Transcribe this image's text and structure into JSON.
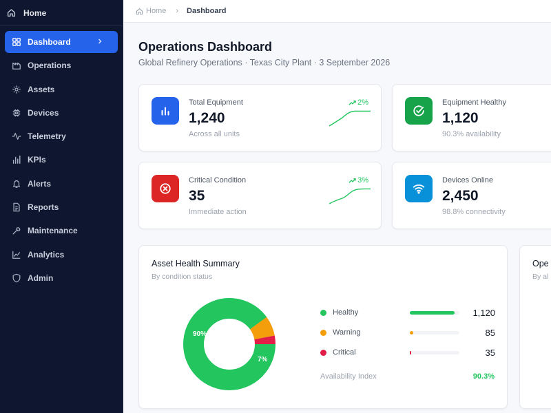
{
  "sidebar": {
    "home_label": "Home",
    "items": [
      {
        "label": "Dashboard",
        "icon": "grid-icon",
        "active": true
      },
      {
        "label": "Operations",
        "icon": "factory-icon"
      },
      {
        "label": "Assets",
        "icon": "gear-icon"
      },
      {
        "label": "Devices",
        "icon": "chip-icon"
      },
      {
        "label": "Telemetry",
        "icon": "pulse-icon"
      },
      {
        "label": "KPIs",
        "icon": "bar-chart-icon"
      },
      {
        "label": "Alerts",
        "icon": "bell-icon"
      },
      {
        "label": "Reports",
        "icon": "document-icon"
      },
      {
        "label": "Maintenance",
        "icon": "wrench-icon"
      },
      {
        "label": "Analytics",
        "icon": "line-chart-icon"
      },
      {
        "label": "Admin",
        "icon": "shield-icon"
      }
    ]
  },
  "breadcrumb": {
    "home": "Home",
    "current": "Dashboard"
  },
  "header": {
    "title": "Operations Dashboard",
    "subtitle": "Global Refinery Operations · Texas City Plant · 3 September 2026"
  },
  "stats": {
    "total_equipment": {
      "label": "Total Equipment",
      "value": "1,240",
      "note": "Across all units",
      "trend": "2%",
      "icon": "bar-chart-icon",
      "color": "#2563eb"
    },
    "equipment_healthy": {
      "label": "Equipment Healthy",
      "value": "1,120",
      "note": "90.3% availability",
      "icon": "check-circle-icon",
      "color": "#16a34a"
    },
    "critical_condition": {
      "label": "Critical Condition",
      "value": "35",
      "note": "Immediate action",
      "trend": "3%",
      "icon": "x-circle-icon",
      "color": "#dc2626"
    },
    "devices_online": {
      "label": "Devices Online",
      "value": "2,450",
      "note": "98.8% connectivity",
      "icon": "wifi-icon",
      "color": "#0891d9"
    }
  },
  "health_summary": {
    "title": "Asset Health Summary",
    "subtitle": "By condition status",
    "healthy_pct_label": "90%",
    "warning_pct_label": "7%",
    "legend": [
      {
        "name": "Healthy",
        "value": "1,120",
        "color": "#22c55e",
        "fraction": 0.9
      },
      {
        "name": "Warning",
        "value": "85",
        "color": "#f59e0b",
        "fraction": 0.07
      },
      {
        "name": "Critical",
        "value": "35",
        "color": "#e11d48",
        "fraction": 0.03
      }
    ],
    "availability_label": "Availability Index",
    "availability_value": "90.3%"
  },
  "next_panel": {
    "title": "Ope",
    "subtitle": "By al"
  }
}
